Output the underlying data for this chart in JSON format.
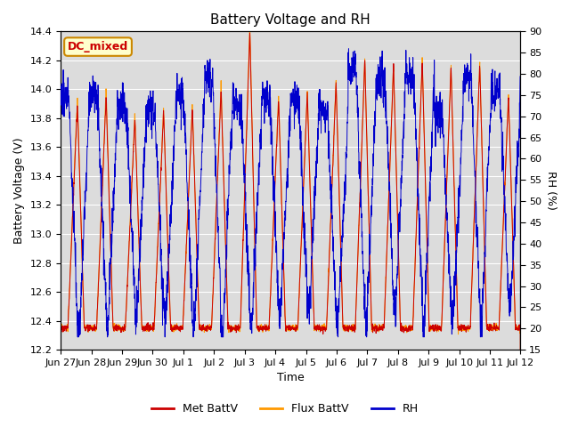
{
  "title": "Battery Voltage and RH",
  "xlabel": "Time",
  "ylabel_left": "Battery Voltage (V)",
  "ylabel_right": "RH (%)",
  "annotation": "DC_mixed",
  "ylim_left": [
    12.2,
    14.4
  ],
  "ylim_right": [
    15,
    90
  ],
  "yticks_left": [
    12.2,
    12.4,
    12.6,
    12.8,
    13.0,
    13.2,
    13.4,
    13.6,
    13.8,
    14.0,
    14.2,
    14.4
  ],
  "yticks_right": [
    15,
    20,
    25,
    30,
    35,
    40,
    45,
    50,
    55,
    60,
    65,
    70,
    75,
    80,
    85,
    90
  ],
  "xtick_labels": [
    "Jun 27",
    "Jun 28",
    "Jun 29",
    "Jun 30",
    "Jul 1",
    "Jul 2",
    "Jul 3",
    "Jul 4",
    "Jul 5",
    "Jul 6",
    "Jul 7",
    "Jul 8",
    "Jul 9",
    "Jul 10",
    "Jul 11",
    "Jul 12"
  ],
  "color_met": "#cc0000",
  "color_flux": "#ff9900",
  "color_rh": "#0000cc",
  "legend_labels": [
    "Met BattV",
    "Flux BattV",
    "RH"
  ],
  "bg_inner": "#dcdcdc",
  "title_fontsize": 11,
  "label_fontsize": 9,
  "tick_fontsize": 8,
  "n_days": 16,
  "seed": 1234
}
